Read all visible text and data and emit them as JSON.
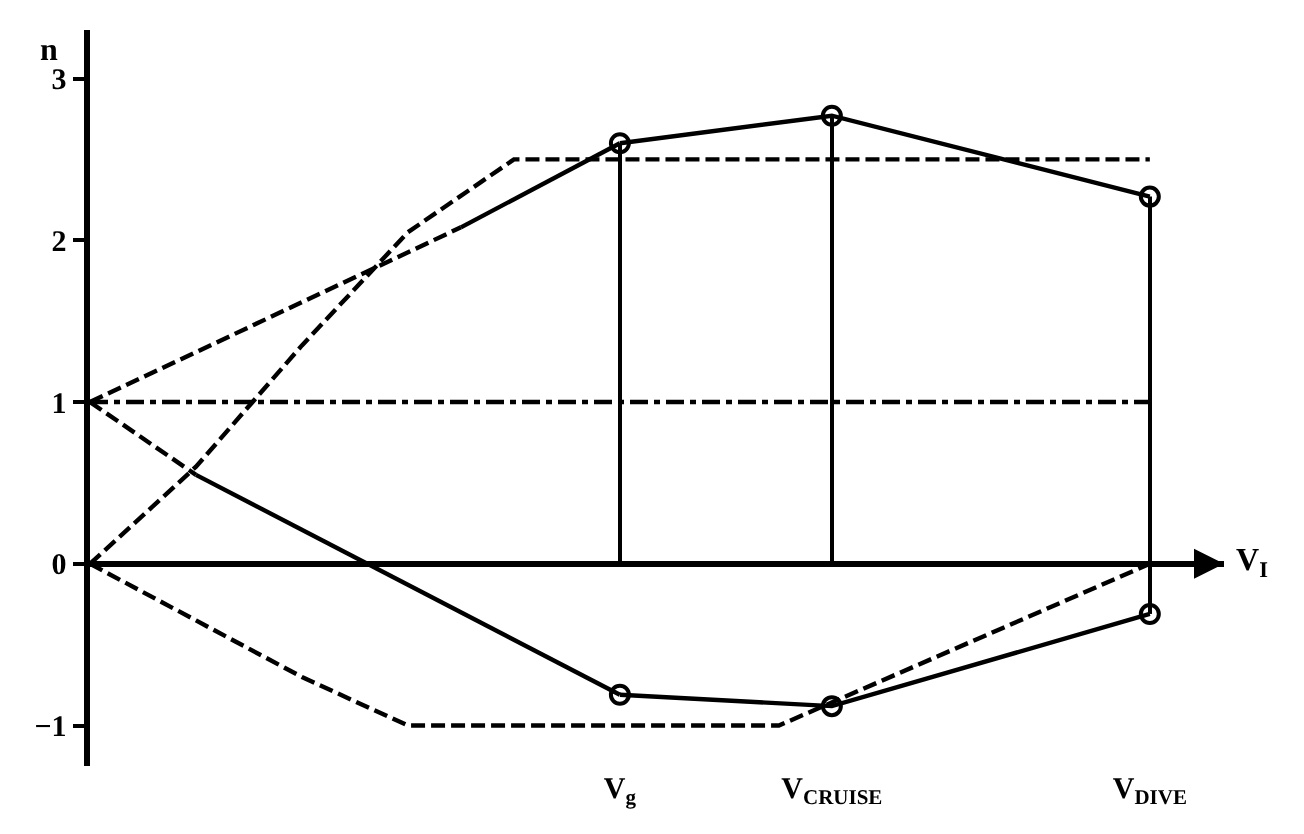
{
  "chart_data": {
    "type": "line",
    "xlabel": "V$_{I}$",
    "ylabel": "n",
    "categories": [
      null,
      null,
      null,
      null,
      null,
      null,
      null,
      null,
      null,
      null,
      "V$_{g}$",
      null,
      null,
      null,
      "V$_{CRUISE}$",
      null,
      null,
      null,
      null,
      null,
      "V$_{DIVE}$"
    ],
    "ylim": [
      -1.25,
      3.3
    ],
    "yticks": [
      -1,
      0,
      1,
      2,
      3
    ],
    "series": [
      {
        "color": "#000000",
        "line_style": "dashed",
        "marker": "none",
        "values": [
          0,
          null,
          0.6,
          null,
          1.35,
          null,
          2.05,
          null,
          2.5,
          null,
          null,
          null,
          null,
          null,
          null,
          null,
          null,
          null,
          null,
          null,
          2.5
        ]
      },
      {
        "color": "#000000",
        "line_style": "dashed",
        "marker": "none",
        "values": [
          0,
          null,
          -0.35,
          null,
          -0.7,
          null,
          -1.0,
          null,
          null,
          null,
          null,
          null,
          null,
          -1.0,
          null,
          null,
          null,
          null,
          null,
          null,
          0
        ]
      },
      {
        "color": "#000000",
        "line_style": "dashed",
        "marker": "none",
        "values": [
          1,
          null,
          null,
          null,
          null,
          null,
          null,
          2.08,
          null,
          null,
          null,
          null,
          null,
          null,
          null,
          null,
          null,
          null,
          null,
          null,
          null
        ]
      },
      {
        "color": "#000000",
        "line_style": "dashed",
        "marker": "none",
        "values": [
          1,
          null,
          0.55,
          null,
          null,
          null,
          null,
          null,
          null,
          null,
          null,
          null,
          null,
          null,
          null,
          null,
          null,
          null,
          null,
          null,
          null
        ]
      },
      {
        "color": "#000000",
        "line_style": "dashdot",
        "marker": "none",
        "values": [
          1,
          null,
          null,
          null,
          null,
          null,
          null,
          null,
          null,
          null,
          null,
          null,
          null,
          null,
          null,
          null,
          null,
          null,
          null,
          null,
          1
        ]
      },
      {
        "color": "#000000",
        "line_style": "solid",
        "values": [
          null,
          null,
          null,
          null,
          null,
          null,
          null,
          2.08,
          null,
          null,
          2.6,
          null,
          null,
          null,
          null,
          null,
          null,
          null,
          null,
          null,
          null
        ]
      },
      {
        "color": "#000000",
        "line_style": "solid",
        "marker": "circle",
        "values": [
          null,
          null,
          null,
          null,
          null,
          null,
          null,
          null,
          null,
          null,
          2.6,
          null,
          null,
          null,
          2.77,
          null,
          null,
          null,
          null,
          null,
          2.27
        ]
      },
      {
        "color": "#000000",
        "line_style": "solid",
        "values": [
          null,
          null,
          0.55,
          null,
          null,
          null,
          null,
          null,
          null,
          null,
          -0.81,
          null,
          null,
          null,
          null,
          null,
          null,
          null,
          null,
          null,
          null
        ]
      },
      {
        "color": "#000000",
        "line_style": "solid",
        "marker": "circle",
        "values": [
          null,
          null,
          null,
          null,
          null,
          null,
          null,
          null,
          null,
          null,
          -0.81,
          null,
          null,
          null,
          -0.88,
          null,
          null,
          null,
          null,
          null,
          -0.31
        ]
      },
      {
        "type": "bar",
        "color": "#000000",
        "values": [
          null,
          null,
          null,
          null,
          null,
          null,
          null,
          null,
          null,
          null,
          2.6,
          null,
          null,
          null,
          2.77,
          null,
          null,
          null,
          null,
          null,
          2.27
        ]
      },
      {
        "type": "bar",
        "color": "#000000",
        "values": [
          null,
          null,
          null,
          null,
          null,
          null,
          null,
          null,
          null,
          null,
          null,
          null,
          null,
          null,
          null,
          null,
          null,
          null,
          null,
          null,
          -0.31
        ]
      }
    ]
  }
}
